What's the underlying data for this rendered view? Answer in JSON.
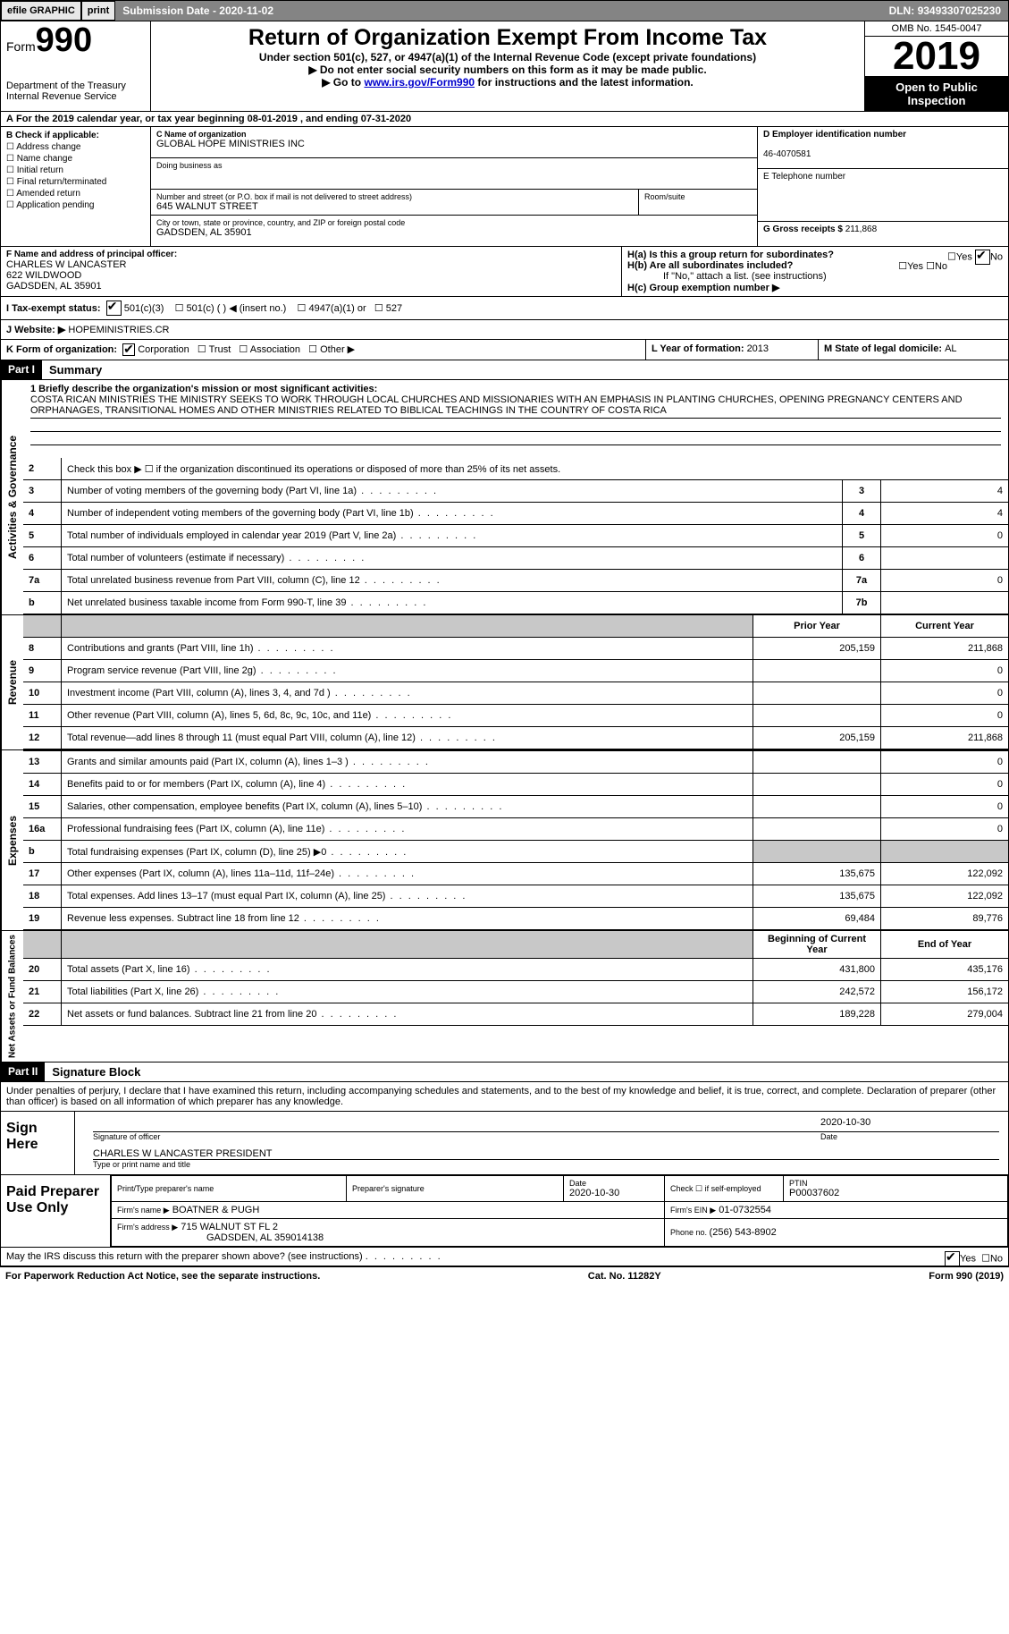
{
  "topbar": {
    "efile": "efile GRAPHIC",
    "print": "print",
    "sub_label": "Submission Date - ",
    "sub_date": "2020-11-02",
    "dln_label": "DLN: ",
    "dln": "93493307025230"
  },
  "header": {
    "form_word": "Form",
    "form_num": "990",
    "dept": "Department of the Treasury",
    "irs": "Internal Revenue Service",
    "title": "Return of Organization Exempt From Income Tax",
    "sub1": "Under section 501(c), 527, or 4947(a)(1) of the Internal Revenue Code (except private foundations)",
    "sub2": "▶ Do not enter social security numbers on this form as it may be made public.",
    "sub3a": "▶ Go to ",
    "sub3_link": "www.irs.gov/Form990",
    "sub3b": " for instructions and the latest information.",
    "omb": "OMB No. 1545-0047",
    "year": "2019",
    "open": "Open to Public Inspection"
  },
  "period": {
    "text1": "For the 2019 calendar year, or tax year beginning ",
    "begin": "08-01-2019",
    "text2": " , and ending ",
    "end": "07-31-2020"
  },
  "sectionB": {
    "label": "B Check if applicable:",
    "addr": "Address change",
    "name": "Name change",
    "initial": "Initial return",
    "final": "Final return/terminated",
    "amended": "Amended return",
    "app": "Application pending"
  },
  "sectionC": {
    "name_label": "C Name of organization",
    "name": "GLOBAL HOPE MINISTRIES INC",
    "dba_label": "Doing business as",
    "street_label": "Number and street (or P.O. box if mail is not delivered to street address)",
    "street": "645 WALNUT STREET",
    "room_label": "Room/suite",
    "city_label": "City or town, state or province, country, and ZIP or foreign postal code",
    "city": "GADSDEN, AL  35901"
  },
  "sectionD": {
    "label": "D Employer identification number",
    "ein": "46-4070581"
  },
  "sectionE": {
    "label": "E Telephone number"
  },
  "sectionG": {
    "label": "G Gross receipts $ ",
    "amt": "211,868"
  },
  "sectionF": {
    "label": "F Name and address of principal officer:",
    "name": "CHARLES W LANCASTER",
    "addr1": "622 WILDWOOD",
    "addr2": "GADSDEN, AL  35901"
  },
  "sectionH": {
    "a": "H(a)  Is this a group return for subordinates?",
    "b": "H(b)  Are all subordinates included?",
    "b2": "If \"No,\" attach a list. (see instructions)",
    "c": "H(c)  Group exemption number ▶",
    "yes": "Yes",
    "no": "No"
  },
  "sectionI": {
    "label": "I   Tax-exempt status:",
    "c3": "501(c)(3)",
    "c": "501(c) (  ) ◀ (insert no.)",
    "a1": "4947(a)(1) or",
    "s527": "527"
  },
  "sectionJ": {
    "label": "J   Website: ▶",
    "site": "HOPEMINISTRIES.CR"
  },
  "sectionK": {
    "label": "K Form of organization:",
    "corp": "Corporation",
    "trust": "Trust",
    "assoc": "Association",
    "other": "Other ▶"
  },
  "sectionL": {
    "label": "L Year of formation: ",
    "val": "2013"
  },
  "sectionM": {
    "label": "M State of legal domicile: ",
    "val": "AL"
  },
  "part1": {
    "part": "Part I",
    "title": "Summary",
    "l1a": "1  Briefly describe the organization's mission or most significant activities:",
    "mission": "COSTA RICAN MINISTRIES THE MINISTRY SEEKS TO WORK THROUGH LOCAL CHURCHES AND MISSIONARIES WITH AN EMPHASIS IN PLANTING CHURCHES, OPENING PREGNANCY CENTERS AND ORPHANAGES, TRANSITIONAL HOMES AND OTHER MINISTRIES RELATED TO BIBLICAL TEACHINGS IN THE COUNTRY OF COSTA RICA",
    "l2": "Check this box ▶ ☐  if the organization discontinued its operations or disposed of more than 25% of its net assets.",
    "vlab_gov": "Activities & Governance",
    "vlab_rev": "Revenue",
    "vlab_exp": "Expenses",
    "vlab_net": "Net Assets or Fund Balances"
  },
  "gov_rows": [
    {
      "n": "2",
      "d": "Check this box ▶ ☐  if the organization discontinued its operations or disposed of more than 25% of its net assets.",
      "ln": "",
      "v": ""
    },
    {
      "n": "3",
      "d": "Number of voting members of the governing body (Part VI, line 1a)",
      "ln": "3",
      "v": "4"
    },
    {
      "n": "4",
      "d": "Number of independent voting members of the governing body (Part VI, line 1b)",
      "ln": "4",
      "v": "4"
    },
    {
      "n": "5",
      "d": "Total number of individuals employed in calendar year 2019 (Part V, line 2a)",
      "ln": "5",
      "v": "0"
    },
    {
      "n": "6",
      "d": "Total number of volunteers (estimate if necessary)",
      "ln": "6",
      "v": ""
    },
    {
      "n": "7a",
      "d": "Total unrelated business revenue from Part VIII, column (C), line 12",
      "ln": "7a",
      "v": "0"
    },
    {
      "n": "b",
      "d": "Net unrelated business taxable income from Form 990-T, line 39",
      "ln": "7b",
      "v": ""
    }
  ],
  "rev_head": {
    "py": "Prior Year",
    "cy": "Current Year"
  },
  "rev_rows": [
    {
      "n": "8",
      "d": "Contributions and grants (Part VIII, line 1h)",
      "py": "205,159",
      "cy": "211,868"
    },
    {
      "n": "9",
      "d": "Program service revenue (Part VIII, line 2g)",
      "py": "",
      "cy": "0"
    },
    {
      "n": "10",
      "d": "Investment income (Part VIII, column (A), lines 3, 4, and 7d )",
      "py": "",
      "cy": "0"
    },
    {
      "n": "11",
      "d": "Other revenue (Part VIII, column (A), lines 5, 6d, 8c, 9c, 10c, and 11e)",
      "py": "",
      "cy": "0"
    },
    {
      "n": "12",
      "d": "Total revenue—add lines 8 through 11 (must equal Part VIII, column (A), line 12)",
      "py": "205,159",
      "cy": "211,868"
    }
  ],
  "exp_rows": [
    {
      "n": "13",
      "d": "Grants and similar amounts paid (Part IX, column (A), lines 1–3 )",
      "py": "",
      "cy": "0"
    },
    {
      "n": "14",
      "d": "Benefits paid to or for members (Part IX, column (A), line 4)",
      "py": "",
      "cy": "0"
    },
    {
      "n": "15",
      "d": "Salaries, other compensation, employee benefits (Part IX, column (A), lines 5–10)",
      "py": "",
      "cy": "0"
    },
    {
      "n": "16a",
      "d": "Professional fundraising fees (Part IX, column (A), line 11e)",
      "py": "",
      "cy": "0"
    },
    {
      "n": "b",
      "d": "Total fundraising expenses (Part IX, column (D), line 25) ▶0",
      "py": "grey",
      "cy": "grey"
    },
    {
      "n": "17",
      "d": "Other expenses (Part IX, column (A), lines 11a–11d, 11f–24e)",
      "py": "135,675",
      "cy": "122,092"
    },
    {
      "n": "18",
      "d": "Total expenses. Add lines 13–17 (must equal Part IX, column (A), line 25)",
      "py": "135,675",
      "cy": "122,092"
    },
    {
      "n": "19",
      "d": "Revenue less expenses. Subtract line 18 from line 12",
      "py": "69,484",
      "cy": "89,776"
    }
  ],
  "net_head": {
    "py": "Beginning of Current Year",
    "cy": "End of Year"
  },
  "net_rows": [
    {
      "n": "20",
      "d": "Total assets (Part X, line 16)",
      "py": "431,800",
      "cy": "435,176"
    },
    {
      "n": "21",
      "d": "Total liabilities (Part X, line 26)",
      "py": "242,572",
      "cy": "156,172"
    },
    {
      "n": "22",
      "d": "Net assets or fund balances. Subtract line 21 from line 20",
      "py": "189,228",
      "cy": "279,004"
    }
  ],
  "part2": {
    "part": "Part II",
    "title": "Signature Block",
    "perjury": "Under penalties of perjury, I declare that I have examined this return, including accompanying schedules and statements, and to the best of my knowledge and belief, it is true, correct, and complete. Declaration of preparer (other than officer) is based on all information of which preparer has any knowledge.",
    "sign_here": "Sign Here",
    "sig_officer": "Signature of officer",
    "date": "Date",
    "sig_date": "2020-10-30",
    "name_title": "CHARLES W LANCASTER  PRESIDENT",
    "type_name": "Type or print name and title",
    "paid": "Paid Preparer Use Only",
    "prep_name_lab": "Print/Type preparer's name",
    "prep_sig_lab": "Preparer's signature",
    "prep_date_lab": "Date",
    "prep_date": "2020-10-30",
    "check_self": "Check ☐ if self-employed",
    "ptin_lab": "PTIN",
    "ptin": "P00037602",
    "firm_name_lab": "Firm's name    ▶",
    "firm_name": "BOATNER & PUGH",
    "firm_ein_lab": "Firm's EIN ▶",
    "firm_ein": "01-0732554",
    "firm_addr_lab": "Firm's address ▶",
    "firm_addr": "715 WALNUT ST FL 2",
    "firm_city": "GADSDEN, AL  359014138",
    "phone_lab": "Phone no. ",
    "phone": "(256) 543-8902",
    "discuss": "May the IRS discuss this return with the preparer shown above? (see instructions)"
  },
  "footer": {
    "pra": "For Paperwork Reduction Act Notice, see the separate instructions.",
    "cat": "Cat. No. 11282Y",
    "form": "Form 990 (2019)"
  }
}
